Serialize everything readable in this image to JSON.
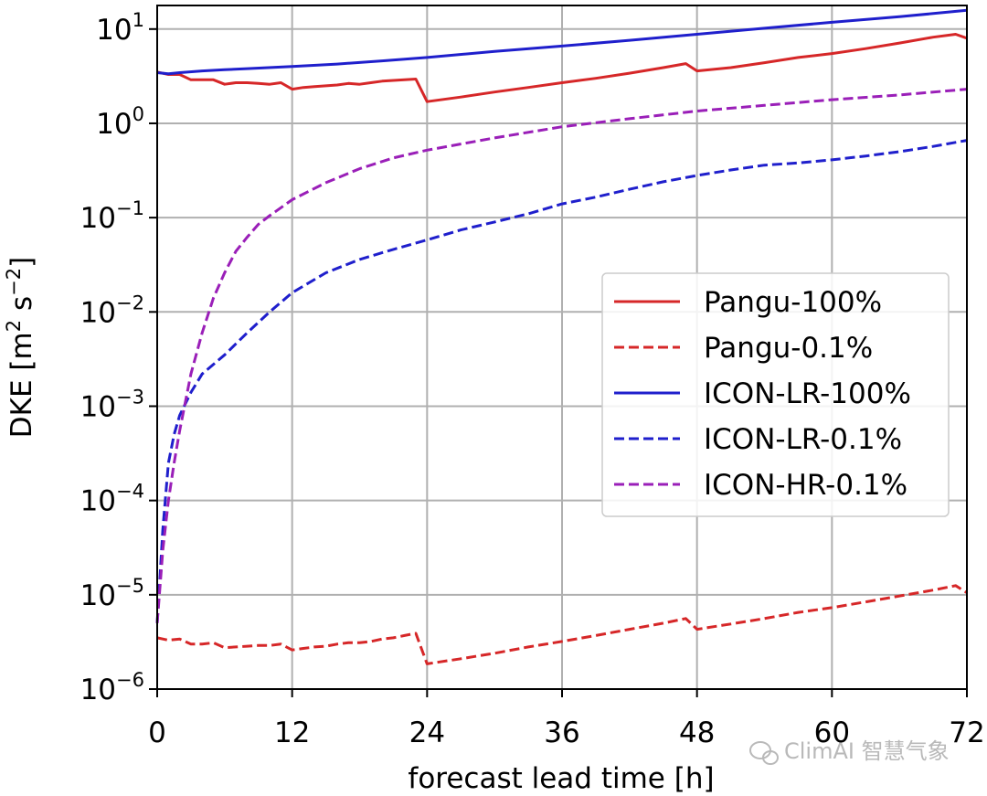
{
  "chart_data": {
    "type": "line",
    "title": "",
    "xlabel": "forecast lead time [h]",
    "ylabel": "DKE [m² s⁻²]",
    "ylabel_parts": {
      "main": "DKE [m",
      "exp1": "2",
      "mid": " s",
      "exp2": "−2",
      "end": "]"
    },
    "xlim": [
      0,
      72
    ],
    "ylim_log10": [
      -6,
      1.25
    ],
    "y_scale": "log",
    "grid": true,
    "x_ticks": [
      0,
      12,
      24,
      36,
      48,
      60,
      72
    ],
    "x_tick_labels": [
      "0",
      "12",
      "24",
      "36",
      "48",
      "60",
      "72"
    ],
    "y_ticks": [
      {
        "base": "10",
        "exp": "1",
        "log": 1
      },
      {
        "base": "10",
        "exp": "0",
        "log": 0
      },
      {
        "base": "10",
        "exp": "−1",
        "log": -1
      },
      {
        "base": "10",
        "exp": "−2",
        "log": -2
      },
      {
        "base": "10",
        "exp": "−3",
        "log": -3
      },
      {
        "base": "10",
        "exp": "−4",
        "log": -4
      },
      {
        "base": "10",
        "exp": "−5",
        "log": -5
      },
      {
        "base": "10",
        "exp": "−6",
        "log": -6
      }
    ],
    "legend_position": "center-right",
    "series": [
      {
        "name": "Pangu-100%",
        "color": "#d62728",
        "style": "solid",
        "x": [
          0,
          1,
          2,
          3,
          4,
          5,
          6,
          7,
          8,
          9,
          10,
          11,
          12,
          13,
          14,
          15,
          16,
          17,
          18,
          19,
          20,
          21,
          22,
          23,
          24,
          27,
          30,
          33,
          36,
          39,
          42,
          45,
          47,
          48,
          51,
          54,
          57,
          60,
          63,
          66,
          69,
          71,
          72
        ],
        "y": [
          3.5,
          3.3,
          3.3,
          2.9,
          2.9,
          2.9,
          2.6,
          2.7,
          2.7,
          2.65,
          2.6,
          2.7,
          2.3,
          2.4,
          2.45,
          2.5,
          2.55,
          2.65,
          2.6,
          2.7,
          2.8,
          2.85,
          2.9,
          2.95,
          1.7,
          1.9,
          2.15,
          2.4,
          2.7,
          3.0,
          3.4,
          3.9,
          4.3,
          3.6,
          3.9,
          4.4,
          5.0,
          5.5,
          6.2,
          7.1,
          8.2,
          8.8,
          8.0
        ]
      },
      {
        "name": "Pangu-0.1%",
        "color": "#d62728",
        "style": "dashed",
        "x": [
          0,
          1,
          2,
          3,
          4,
          5,
          6,
          7,
          8,
          9,
          10,
          11,
          12,
          13,
          14,
          15,
          16,
          17,
          18,
          19,
          20,
          21,
          22,
          23,
          24,
          27,
          30,
          33,
          36,
          39,
          42,
          45,
          47,
          48,
          51,
          54,
          57,
          60,
          63,
          66,
          69,
          71,
          72
        ],
        "y": [
          3.5e-06,
          3.3e-06,
          3.4e-06,
          3e-06,
          3e-06,
          3.1e-06,
          2.75e-06,
          2.8e-06,
          2.85e-06,
          2.9e-06,
          2.9e-06,
          3e-06,
          2.6e-06,
          2.7e-06,
          2.8e-06,
          2.85e-06,
          3e-06,
          3.1e-06,
          3.1e-06,
          3.2e-06,
          3.4e-06,
          3.5e-06,
          3.7e-06,
          3.9e-06,
          1.85e-06,
          2.1e-06,
          2.4e-06,
          2.8e-06,
          3.2e-06,
          3.7e-06,
          4.3e-06,
          5e-06,
          5.6e-06,
          4.3e-06,
          4.9e-06,
          5.6e-06,
          6.5e-06,
          7.3e-06,
          8.4e-06,
          9.7e-06,
          1.12e-05,
          1.25e-05,
          1.05e-05
        ]
      },
      {
        "name": "ICON-LR-100%",
        "color": "#1f1fcc",
        "style": "solid",
        "x": [
          0,
          1,
          2,
          4,
          6,
          8,
          12,
          16,
          20,
          24,
          30,
          36,
          42,
          48,
          54,
          60,
          66,
          72
        ],
        "y": [
          3.45,
          3.35,
          3.45,
          3.6,
          3.7,
          3.8,
          4.0,
          4.25,
          4.6,
          5.0,
          5.8,
          6.6,
          7.6,
          8.8,
          10.2,
          11.8,
          13.5,
          15.8
        ]
      },
      {
        "name": "ICON-LR-0.1%",
        "color": "#1f1fcc",
        "style": "dashed",
        "x": [
          0,
          0.5,
          1,
          1.5,
          2,
          3,
          4,
          6,
          8,
          10,
          12,
          15,
          18,
          21,
          24,
          27,
          30,
          33,
          36,
          39,
          42,
          45,
          48,
          51,
          54,
          57,
          60,
          63,
          66,
          69,
          72
        ],
        "y": [
          5e-06,
          5e-05,
          0.00025,
          0.0005,
          0.0008,
          0.0014,
          0.0022,
          0.0035,
          0.006,
          0.01,
          0.016,
          0.026,
          0.036,
          0.046,
          0.058,
          0.074,
          0.09,
          0.11,
          0.14,
          0.165,
          0.2,
          0.24,
          0.28,
          0.32,
          0.36,
          0.38,
          0.41,
          0.45,
          0.5,
          0.57,
          0.66
        ]
      },
      {
        "name": "ICON-HR-0.1%",
        "color": "#9a1fb8",
        "style": "dashed",
        "x": [
          0,
          0.5,
          1,
          1.5,
          2,
          3,
          4,
          5,
          6,
          7,
          8,
          9,
          10,
          12,
          15,
          18,
          21,
          24,
          30,
          36,
          42,
          48,
          54,
          60,
          66,
          72
        ],
        "y": [
          5e-06,
          3e-05,
          0.0001,
          0.00025,
          0.00055,
          0.0022,
          0.006,
          0.014,
          0.026,
          0.044,
          0.062,
          0.085,
          0.105,
          0.155,
          0.235,
          0.33,
          0.43,
          0.52,
          0.7,
          0.92,
          1.12,
          1.35,
          1.55,
          1.78,
          2.0,
          2.3
        ]
      }
    ]
  },
  "watermark": {
    "icon": "wechat-icon",
    "text": "ClimAI 智慧气象"
  }
}
